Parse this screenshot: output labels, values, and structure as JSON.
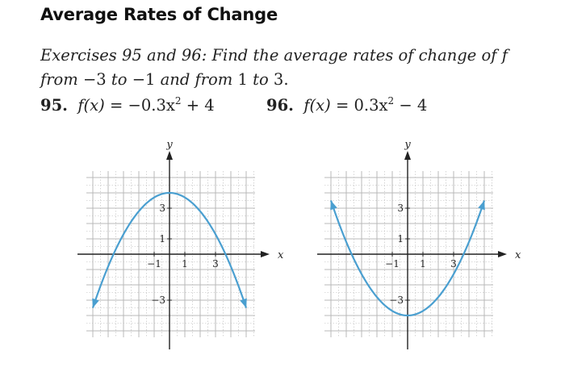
{
  "heading": "Average Rates of Change",
  "intro": {
    "line1_a": "Exercises 95 and 96: Find the average rates of change of ",
    "line1_f": "f",
    "line2_a": "from ",
    "line2_v1": "−3",
    "line2_b": " to ",
    "line2_v2": "−1",
    "line2_c": " and from ",
    "line2_v3": "1",
    "line2_d": " to ",
    "line2_v4": "3."
  },
  "exercises": [
    {
      "number": "95.",
      "lhs": "f(x)",
      "eq": " = −0.3x",
      "exp": "2",
      "tail": " + 4"
    },
    {
      "number": "96.",
      "lhs": "f(x)",
      "eq": " = 0.3x",
      "exp": "2",
      "tail": " − 4"
    }
  ],
  "graph_labels": {
    "x_axis": "x",
    "y_axis": "y",
    "x_ticks": [
      "−1",
      "1",
      "3"
    ],
    "y_ticks": [
      "3",
      "1",
      "−3"
    ]
  },
  "colors": {
    "curve": "#4a9fd0",
    "grid": "#b9b9b9",
    "axis": "#222222",
    "text": "#222222"
  },
  "chart_data": [
    {
      "type": "line",
      "function": "f(x) = -0.3x^2 + 4",
      "coefficient_a": -0.3,
      "constant_c": 4,
      "x_domain": [
        -5,
        5
      ],
      "xlim": [
        -5,
        5
      ],
      "ylim": [
        -5,
        5
      ],
      "grid": true,
      "x_tick_values": [
        -1,
        1,
        3
      ],
      "y_tick_values": [
        3,
        1,
        -3
      ],
      "xlabel": "x",
      "ylabel": "y"
    },
    {
      "type": "line",
      "function": "f(x) = 0.3x^2 - 4",
      "coefficient_a": 0.3,
      "constant_c": -4,
      "x_domain": [
        -5,
        5
      ],
      "xlim": [
        -5,
        5
      ],
      "ylim": [
        -5,
        5
      ],
      "grid": true,
      "x_tick_values": [
        -1,
        1,
        3
      ],
      "y_tick_values": [
        3,
        1,
        -3
      ],
      "xlabel": "x",
      "ylabel": "y"
    }
  ]
}
